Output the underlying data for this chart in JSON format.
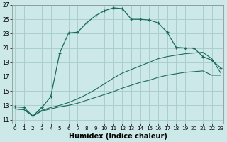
{
  "xlabel": "Humidex (Indice chaleur)",
  "bg_color": "#cce8e8",
  "grid_color": "#aacece",
  "line_color": "#1a6b5a",
  "xlim": [
    0,
    23
  ],
  "ylim": [
    10.5,
    27.0
  ],
  "xticks": [
    0,
    1,
    2,
    3,
    4,
    5,
    6,
    7,
    8,
    9,
    10,
    11,
    12,
    13,
    14,
    15,
    16,
    17,
    18,
    19,
    20,
    21,
    22,
    23
  ],
  "yticks": [
    11,
    13,
    15,
    17,
    19,
    21,
    23,
    25,
    27
  ],
  "line1_x": [
    0,
    1,
    2,
    3,
    4,
    5,
    6,
    7,
    8,
    9,
    10,
    11,
    12,
    13,
    14,
    15,
    16,
    17,
    18,
    19,
    20,
    21,
    22,
    23
  ],
  "line1_y": [
    12.8,
    12.7,
    11.5,
    12.7,
    14.2,
    20.3,
    23.1,
    23.2,
    24.5,
    25.5,
    26.2,
    26.6,
    26.5,
    25.0,
    25.0,
    24.9,
    24.5,
    23.2,
    21.1,
    21.0,
    21.0,
    19.8,
    19.3,
    18.2
  ],
  "line2_x": [
    0,
    1,
    2,
    3,
    4,
    5,
    6,
    7,
    8,
    9,
    10,
    11,
    12,
    13,
    14,
    15,
    16,
    17,
    18,
    19,
    20,
    21,
    22,
    23
  ],
  "line2_y": [
    12.5,
    12.4,
    11.5,
    12.3,
    12.7,
    13.0,
    13.4,
    13.9,
    14.5,
    15.2,
    16.0,
    16.8,
    17.5,
    18.0,
    18.5,
    19.0,
    19.5,
    19.8,
    20.0,
    20.2,
    20.3,
    20.4,
    19.5,
    17.5
  ],
  "line3_x": [
    0,
    1,
    2,
    3,
    4,
    5,
    6,
    7,
    8,
    9,
    10,
    11,
    12,
    13,
    14,
    15,
    16,
    17,
    18,
    19,
    20,
    21,
    22,
    23
  ],
  "line3_y": [
    12.5,
    12.4,
    11.5,
    12.2,
    12.5,
    12.8,
    13.0,
    13.3,
    13.7,
    14.1,
    14.5,
    14.9,
    15.4,
    15.8,
    16.2,
    16.5,
    16.9,
    17.2,
    17.4,
    17.6,
    17.7,
    17.8,
    17.2,
    17.2
  ]
}
